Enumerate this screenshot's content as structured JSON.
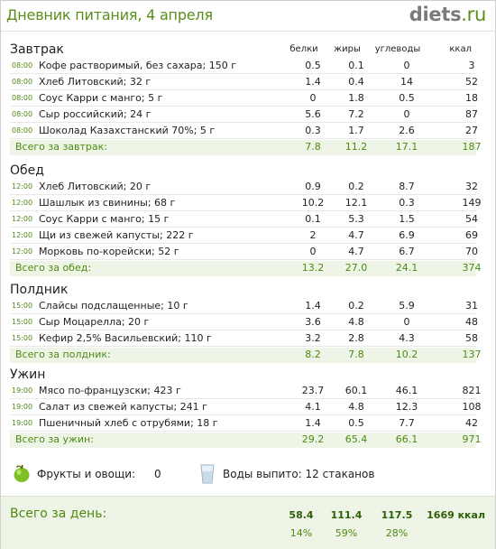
{
  "header": {
    "title": "Дневник питания, 4 апреля",
    "logo_main": "diets",
    "logo_tld": ".ru"
  },
  "columns": {
    "protein": "белки",
    "fat": "жиры",
    "carbs": "углеводы",
    "kcal": "ккал"
  },
  "meals": [
    {
      "title": "Завтрак",
      "items": [
        {
          "time": "08:00",
          "name": "Кофе растворимый, без сахара; 150 г",
          "p": "0.5",
          "f": "0.1",
          "c": "0",
          "k": "3"
        },
        {
          "time": "08:00",
          "name": "Хлеб Литовский; 32 г",
          "p": "1.4",
          "f": "0.4",
          "c": "14",
          "k": "52"
        },
        {
          "time": "08:00",
          "name": "Соус Карри с манго; 5 г",
          "p": "0",
          "f": "1.8",
          "c": "0.5",
          "k": "18"
        },
        {
          "time": "08:00",
          "name": "Сыр российский; 24 г",
          "p": "5.6",
          "f": "7.2",
          "c": "0",
          "k": "87"
        },
        {
          "time": "08:00",
          "name": "Шоколад Казахстанский 70%; 5 г",
          "p": "0.3",
          "f": "1.7",
          "c": "2.6",
          "k": "27"
        }
      ],
      "total": {
        "label": "Всего за завтрак:",
        "p": "7.8",
        "f": "11.2",
        "c": "17.1",
        "k": "187"
      }
    },
    {
      "title": "Обед",
      "items": [
        {
          "time": "12:00",
          "name": "Хлеб Литовский; 20 г",
          "p": "0.9",
          "f": "0.2",
          "c": "8.7",
          "k": "32"
        },
        {
          "time": "12:00",
          "name": "Шашлык из свинины; 68 г",
          "p": "10.2",
          "f": "12.1",
          "c": "0.3",
          "k": "149"
        },
        {
          "time": "12:00",
          "name": "Соус Карри с манго; 15 г",
          "p": "0.1",
          "f": "5.3",
          "c": "1.5",
          "k": "54"
        },
        {
          "time": "12:00",
          "name": "Щи из свежей капусты; 222 г",
          "p": "2",
          "f": "4.7",
          "c": "6.9",
          "k": "69"
        },
        {
          "time": "12:00",
          "name": "Морковь по-корейски; 52 г",
          "p": "0",
          "f": "4.7",
          "c": "6.7",
          "k": "70"
        }
      ],
      "total": {
        "label": "Всего за обед:",
        "p": "13.2",
        "f": "27.0",
        "c": "24.1",
        "k": "374"
      }
    },
    {
      "title": "Полдник",
      "items": [
        {
          "time": "15:00",
          "name": "Слайсы подслащенные; 10 г",
          "p": "1.4",
          "f": "0.2",
          "c": "5.9",
          "k": "31"
        },
        {
          "time": "15:00",
          "name": "Сыр Моцарелла; 20 г",
          "p": "3.6",
          "f": "4.8",
          "c": "0",
          "k": "48"
        },
        {
          "time": "15:00",
          "name": "Кефир 2,5% Васильевский; 110 г",
          "p": "3.2",
          "f": "2.8",
          "c": "4.3",
          "k": "58"
        }
      ],
      "total": {
        "label": "Всего за полдник:",
        "p": "8.2",
        "f": "7.8",
        "c": "10.2",
        "k": "137"
      }
    },
    {
      "title": "Ужин",
      "items": [
        {
          "time": "19:00",
          "name": "Мясо по-французски; 423 г",
          "p": "23.7",
          "f": "60.1",
          "c": "46.1",
          "k": "821"
        },
        {
          "time": "19:00",
          "name": "Салат из свежей капусты; 241 г",
          "p": "4.1",
          "f": "4.8",
          "c": "12.3",
          "k": "108"
        },
        {
          "time": "19:00",
          "name": "Пшеничный хлеб с отрубями; 18 г",
          "p": "1.4",
          "f": "0.5",
          "c": "7.7",
          "k": "42"
        }
      ],
      "total": {
        "label": "Всего за ужин:",
        "p": "29.2",
        "f": "65.4",
        "c": "66.1",
        "k": "971"
      }
    }
  ],
  "extras": {
    "fruits_label": "Фрукты и овощи:",
    "fruits_value": "0",
    "water_label": "Воды выпито: 12 стаканов",
    "fruit_icon": "apple-icon",
    "water_icon": "water-glass-icon"
  },
  "day_total": {
    "label": "Всего за день:",
    "p": "58.4",
    "f": "111.4",
    "c": "117.5",
    "k": "1669 ккал",
    "p_pct": "14%",
    "f_pct": "59%",
    "c_pct": "28%"
  },
  "colors": {
    "accent_green": "#4d8a12",
    "total_bg": "#eef5e6"
  }
}
